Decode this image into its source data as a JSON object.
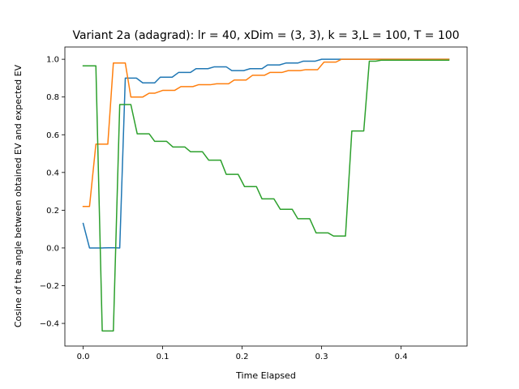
{
  "chart_data": {
    "type": "line",
    "title": "Variant 2a (adagrad): lr = 40, xDim = (3, 3), k = 3,L = 100, T = 100",
    "xlabel": "Time Elapsed",
    "ylabel": "Cosine of the angle between obtained EV and expected EV",
    "xlim": [
      -0.023,
      0.483
    ],
    "ylim": [
      -0.52,
      1.065
    ],
    "xticks": [
      0.0,
      0.1,
      0.2,
      0.3,
      0.4
    ],
    "xtick_labels": [
      "0.0",
      "0.1",
      "0.2",
      "0.3",
      "0.4"
    ],
    "yticks": [
      -0.4,
      -0.2,
      0.0,
      0.2,
      0.4,
      0.6,
      0.8,
      1.0
    ],
    "ytick_labels": [
      "−0.4",
      "−0.2",
      "0.0",
      "0.2",
      "0.4",
      "0.6",
      "0.8",
      "1.0"
    ],
    "grid": false,
    "legend": false,
    "series": [
      {
        "color": "#1f77b4",
        "x": [
          0.0,
          0.008,
          0.016,
          0.024,
          0.032,
          0.04,
          0.046,
          0.053,
          0.06,
          0.067,
          0.075,
          0.082,
          0.09,
          0.097,
          0.105,
          0.112,
          0.12,
          0.127,
          0.135,
          0.142,
          0.15,
          0.157,
          0.165,
          0.172,
          0.18,
          0.187,
          0.195,
          0.202,
          0.21,
          0.217,
          0.225,
          0.232,
          0.24,
          0.247,
          0.255,
          0.262,
          0.27,
          0.277,
          0.285,
          0.292,
          0.3,
          0.307,
          0.315,
          0.322,
          0.33,
          0.337,
          0.345,
          0.352,
          0.36,
          0.367,
          0.375,
          0.382,
          0.39,
          0.397,
          0.405,
          0.412,
          0.42,
          0.427,
          0.435,
          0.442,
          0.45,
          0.46
        ],
        "y": [
          0.13,
          0.0,
          0.0,
          0.0,
          0.001,
          0.001,
          0.0,
          0.9,
          0.9,
          0.9,
          0.875,
          0.875,
          0.875,
          0.905,
          0.905,
          0.905,
          0.93,
          0.93,
          0.93,
          0.95,
          0.95,
          0.95,
          0.96,
          0.96,
          0.96,
          0.94,
          0.94,
          0.94,
          0.95,
          0.95,
          0.95,
          0.97,
          0.97,
          0.97,
          0.98,
          0.98,
          0.98,
          0.99,
          0.99,
          0.99,
          1.0,
          1.0,
          1.0,
          1.0,
          1.0,
          1.0,
          1.0,
          1.0,
          1.0,
          1.0,
          1.0,
          1.0,
          1.0,
          1.0,
          1.0,
          1.0,
          1.0,
          1.0,
          1.0,
          1.0,
          1.0,
          1.0
        ]
      },
      {
        "color": "#ff7f0e",
        "x": [
          0.0,
          0.008,
          0.016,
          0.024,
          0.031,
          0.038,
          0.046,
          0.053,
          0.06,
          0.068,
          0.075,
          0.083,
          0.09,
          0.1,
          0.108,
          0.115,
          0.123,
          0.13,
          0.138,
          0.145,
          0.153,
          0.16,
          0.168,
          0.175,
          0.183,
          0.19,
          0.198,
          0.205,
          0.213,
          0.22,
          0.228,
          0.235,
          0.243,
          0.25,
          0.258,
          0.265,
          0.273,
          0.28,
          0.288,
          0.295,
          0.303,
          0.31,
          0.318,
          0.325,
          0.333,
          0.34,
          0.348,
          0.355,
          0.363,
          0.37,
          0.378,
          0.385,
          0.393,
          0.4,
          0.408,
          0.415,
          0.423,
          0.43,
          0.438,
          0.445,
          0.46
        ],
        "y": [
          0.22,
          0.22,
          0.55,
          0.55,
          0.55,
          0.98,
          0.98,
          0.98,
          0.8,
          0.8,
          0.8,
          0.82,
          0.82,
          0.835,
          0.835,
          0.835,
          0.855,
          0.855,
          0.855,
          0.865,
          0.865,
          0.865,
          0.87,
          0.87,
          0.87,
          0.89,
          0.89,
          0.89,
          0.915,
          0.915,
          0.915,
          0.93,
          0.93,
          0.93,
          0.94,
          0.94,
          0.94,
          0.945,
          0.945,
          0.945,
          0.985,
          0.985,
          0.985,
          1.0,
          1.0,
          1.0,
          1.0,
          1.0,
          1.0,
          1.0,
          1.0,
          1.0,
          1.0,
          1.0,
          1.0,
          1.0,
          1.0,
          1.0,
          1.0,
          1.0,
          1.0
        ]
      },
      {
        "color": "#2ca02c",
        "x": [
          0.0,
          0.008,
          0.016,
          0.024,
          0.031,
          0.038,
          0.046,
          0.053,
          0.06,
          0.068,
          0.075,
          0.083,
          0.09,
          0.098,
          0.105,
          0.113,
          0.12,
          0.128,
          0.135,
          0.143,
          0.15,
          0.158,
          0.165,
          0.173,
          0.18,
          0.188,
          0.195,
          0.203,
          0.21,
          0.218,
          0.225,
          0.233,
          0.24,
          0.248,
          0.255,
          0.263,
          0.27,
          0.278,
          0.285,
          0.293,
          0.3,
          0.308,
          0.315,
          0.323,
          0.33,
          0.338,
          0.345,
          0.353,
          0.36,
          0.368,
          0.375,
          0.383,
          0.39,
          0.398,
          0.405,
          0.413,
          0.42,
          0.428,
          0.435,
          0.443,
          0.46
        ],
        "y": [
          0.965,
          0.965,
          0.965,
          -0.44,
          -0.44,
          -0.44,
          0.76,
          0.76,
          0.76,
          0.605,
          0.605,
          0.605,
          0.565,
          0.565,
          0.565,
          0.535,
          0.535,
          0.535,
          0.51,
          0.51,
          0.51,
          0.465,
          0.465,
          0.465,
          0.39,
          0.39,
          0.39,
          0.325,
          0.325,
          0.325,
          0.26,
          0.26,
          0.26,
          0.205,
          0.205,
          0.205,
          0.155,
          0.155,
          0.155,
          0.08,
          0.08,
          0.08,
          0.063,
          0.063,
          0.063,
          0.62,
          0.62,
          0.62,
          0.99,
          0.99,
          0.995,
          0.995,
          0.995,
          0.995,
          0.995,
          0.995,
          0.995,
          0.995,
          0.995,
          0.995,
          0.995
        ]
      }
    ]
  }
}
